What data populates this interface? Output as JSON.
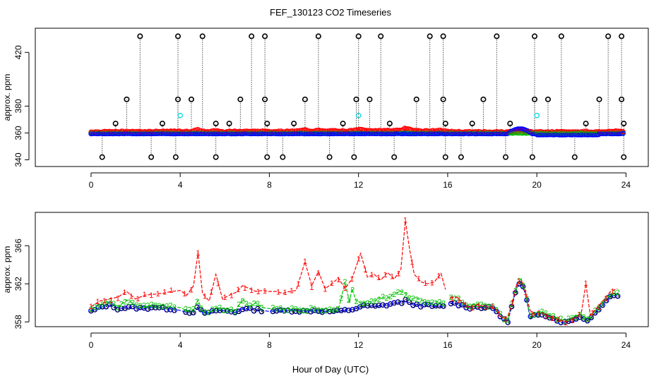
{
  "title": "FEF_130123  CO2 Timeseries",
  "xlabel": "Hour of Day (UTC)",
  "colors": {
    "series1": "#ff0000",
    "series2": "#00c000",
    "series3": "#0000ff",
    "highlight": "#00d8d8",
    "outlier": "#000000"
  },
  "chart_data": [
    {
      "type": "scatter",
      "panel": "top",
      "ylabel": "approx. ppm",
      "xlim": [
        -2.5,
        25
      ],
      "ylim": [
        335,
        438
      ],
      "xticks": [
        0,
        4,
        8,
        12,
        16,
        20,
        24
      ],
      "yticks": [
        340,
        380,
        420
      ],
      "yticklabels": [
        "340",
        "360",
        "380",
        "420"
      ],
      "ytick_values": [
        340,
        360,
        380,
        420
      ],
      "baseline_ppm": 359.5,
      "spike_high_hours": [
        2.2,
        3.9,
        5.0,
        7.2,
        7.8,
        10.2,
        12.0,
        13.0,
        15.2,
        15.8,
        18.2,
        19.9,
        21.1,
        23.2,
        23.8
      ],
      "spike_high_value": 432,
      "spike_mid_hours": [
        1.6,
        3.9,
        4.5,
        6.7,
        7.8,
        9.6,
        11.9,
        12.5,
        14.6,
        15.8,
        17.6,
        19.9,
        20.5,
        22.8,
        23.8
      ],
      "spike_mid_value": 385,
      "spike_low_hours": [
        1.1,
        3.2,
        5.6,
        6.2,
        7.9,
        9.1,
        11.3,
        13.4,
        15.9,
        17.1,
        18.8,
        22.2,
        23.9
      ],
      "spike_low_value": 367,
      "dip_hours": [
        0.5,
        2.7,
        3.8,
        5.6,
        7.9,
        8.6,
        10.7,
        11.8,
        13.6,
        15.9,
        16.6,
        18.6,
        19.8,
        21.7,
        23.9
      ],
      "dip_value": 342,
      "highlight_points": [
        [
          4.0,
          373
        ],
        [
          12.0,
          373
        ],
        [
          20.0,
          373
        ]
      ],
      "series": [
        {
          "name": "1",
          "marker": "circle",
          "color": "#ff0000"
        },
        {
          "name": "2",
          "marker": "circle",
          "color": "#00c000"
        },
        {
          "name": "3",
          "marker": "circle",
          "color": "#0000ff"
        }
      ]
    },
    {
      "type": "line",
      "panel": "bottom",
      "ylabel": "approx. ppm",
      "xlim": [
        -2.5,
        25
      ],
      "ylim": [
        357.5,
        369.5
      ],
      "xticks": [
        0,
        4,
        8,
        12,
        16,
        20,
        24
      ],
      "yticks": [
        358,
        362,
        366
      ],
      "series": [
        {
          "name": "1",
          "color": "#ff0000",
          "points": [
            [
              0.0,
              359.6
            ],
            [
              0.4,
              360.2
            ],
            [
              0.8,
              360.4
            ],
            [
              1.2,
              360.6
            ],
            [
              1.6,
              361.2
            ],
            [
              2.0,
              360.4
            ],
            [
              2.4,
              360.8
            ],
            [
              2.8,
              360.9
            ],
            [
              3.2,
              361.0
            ],
            [
              3.6,
              361.2
            ],
            [
              4.0,
              361.3
            ],
            [
              4.3,
              360.8
            ],
            [
              4.6,
              361.8
            ],
            [
              4.8,
              365.3
            ],
            [
              5.0,
              361.0
            ],
            [
              5.3,
              360.2
            ],
            [
              5.6,
              363.0
            ],
            [
              5.9,
              360.4
            ],
            [
              6.2,
              360.8
            ],
            [
              6.5,
              361.1
            ],
            [
              6.8,
              361.8
            ],
            [
              7.1,
              361.5
            ],
            [
              7.4,
              361.2
            ],
            [
              7.7,
              361.3
            ],
            [
              8.0,
              361.2
            ],
            [
              8.3,
              361.2
            ],
            [
              8.6,
              361.0
            ],
            [
              8.9,
              361.2
            ],
            [
              9.2,
              361.3
            ],
            [
              9.6,
              364.3
            ],
            [
              9.9,
              361.8
            ],
            [
              10.2,
              363.3
            ],
            [
              10.5,
              361.5
            ],
            [
              10.8,
              362.0
            ],
            [
              11.1,
              362.6
            ],
            [
              11.4,
              361.5
            ],
            [
              11.7,
              362.5
            ],
            [
              12.1,
              365.2
            ],
            [
              12.4,
              362.7
            ],
            [
              12.7,
              363.0
            ],
            [
              13.0,
              362.4
            ],
            [
              13.3,
              363.2
            ],
            [
              13.6,
              362.5
            ],
            [
              13.9,
              363.5
            ],
            [
              14.1,
              368.6
            ],
            [
              14.3,
              365.5
            ],
            [
              14.5,
              363.0
            ],
            [
              14.8,
              362.2
            ],
            [
              15.1,
              362.0
            ],
            [
              15.4,
              362.2
            ],
            [
              15.7,
              363.1
            ],
            [
              15.9,
              361.4
            ],
            [
              16.1,
              360.5
            ],
            [
              16.4,
              360.6
            ],
            [
              16.7,
              360.0
            ],
            [
              17.0,
              359.5
            ],
            [
              17.3,
              359.8
            ],
            [
              17.7,
              359.6
            ],
            [
              18.1,
              359.5
            ],
            [
              18.5,
              358.3
            ],
            [
              18.7,
              358.6
            ],
            [
              18.9,
              360.0
            ],
            [
              19.1,
              362.0
            ],
            [
              19.3,
              362.4
            ],
            [
              19.5,
              361.0
            ],
            [
              19.7,
              359.2
            ],
            [
              19.9,
              358.8
            ],
            [
              20.2,
              359.0
            ],
            [
              20.5,
              358.6
            ],
            [
              20.9,
              358.3
            ],
            [
              21.3,
              358.0
            ],
            [
              21.7,
              358.4
            ],
            [
              22.0,
              359.0
            ],
            [
              22.2,
              362.0
            ],
            [
              22.4,
              358.7
            ],
            [
              22.7,
              359.5
            ],
            [
              23.0,
              360.3
            ],
            [
              23.3,
              361.2
            ],
            [
              23.6,
              361.5
            ]
          ]
        },
        {
          "name": "2",
          "color": "#00c000",
          "points": [
            [
              0.0,
              359.3
            ],
            [
              0.4,
              359.8
            ],
            [
              0.8,
              360.2
            ],
            [
              1.2,
              359.6
            ],
            [
              1.6,
              360.3
            ],
            [
              2.0,
              359.8
            ],
            [
              2.4,
              359.6
            ],
            [
              2.8,
              359.8
            ],
            [
              3.2,
              359.7
            ],
            [
              3.6,
              359.6
            ],
            [
              4.0,
              359.5
            ],
            [
              4.3,
              359.2
            ],
            [
              4.6,
              359.3
            ],
            [
              4.8,
              360.3
            ],
            [
              5.0,
              359.1
            ],
            [
              5.3,
              359.0
            ],
            [
              5.6,
              359.5
            ],
            [
              5.9,
              359.4
            ],
            [
              6.2,
              359.3
            ],
            [
              6.5,
              359.2
            ],
            [
              6.8,
              360.4
            ],
            [
              7.1,
              359.6
            ],
            [
              7.4,
              360.0
            ],
            [
              7.7,
              359.5
            ],
            [
              8.0,
              359.4
            ],
            [
              8.3,
              359.5
            ],
            [
              8.6,
              359.3
            ],
            [
              8.9,
              359.4
            ],
            [
              9.2,
              359.4
            ],
            [
              9.6,
              359.2
            ],
            [
              9.9,
              359.5
            ],
            [
              10.2,
              359.3
            ],
            [
              10.5,
              359.4
            ],
            [
              10.8,
              359.2
            ],
            [
              11.1,
              359.3
            ],
            [
              11.4,
              362.2
            ],
            [
              11.6,
              360.0
            ],
            [
              11.7,
              361.5
            ],
            [
              11.9,
              360.2
            ],
            [
              12.1,
              360.0
            ],
            [
              12.4,
              360.1
            ],
            [
              12.7,
              360.2
            ],
            [
              13.0,
              360.6
            ],
            [
              13.3,
              360.5
            ],
            [
              13.6,
              361.0
            ],
            [
              13.9,
              361.2
            ],
            [
              14.1,
              361.0
            ],
            [
              14.3,
              360.4
            ],
            [
              14.6,
              360.5
            ],
            [
              14.9,
              360.2
            ],
            [
              15.2,
              360.0
            ],
            [
              15.5,
              360.1
            ],
            [
              15.8,
              360.0
            ],
            [
              16.1,
              360.6
            ],
            [
              16.4,
              360.6
            ],
            [
              16.7,
              359.9
            ],
            [
              17.0,
              359.7
            ],
            [
              17.3,
              359.9
            ],
            [
              17.7,
              359.8
            ],
            [
              18.1,
              359.6
            ],
            [
              18.5,
              358.4
            ],
            [
              18.7,
              358.3
            ],
            [
              18.9,
              360.1
            ],
            [
              19.1,
              361.9
            ],
            [
              19.3,
              362.5
            ],
            [
              19.5,
              361.0
            ],
            [
              19.7,
              358.5
            ],
            [
              19.9,
              358.9
            ],
            [
              20.2,
              359.1
            ],
            [
              20.5,
              358.8
            ],
            [
              20.9,
              358.4
            ],
            [
              21.3,
              358.1
            ],
            [
              21.7,
              358.6
            ],
            [
              22.0,
              358.8
            ],
            [
              22.2,
              358.4
            ],
            [
              22.4,
              358.5
            ],
            [
              22.7,
              359.4
            ],
            [
              23.0,
              360.2
            ],
            [
              23.3,
              360.9
            ],
            [
              23.6,
              361.0
            ]
          ]
        },
        {
          "name": "3",
          "color": "#0000ff",
          "points": [
            [
              0.0,
              359.1
            ],
            [
              0.4,
              359.5
            ],
            [
              0.8,
              359.8
            ],
            [
              1.2,
              359.4
            ],
            [
              1.6,
              359.5
            ],
            [
              2.0,
              359.5
            ],
            [
              2.4,
              359.4
            ],
            [
              2.8,
              359.6
            ],
            [
              3.2,
              359.4
            ],
            [
              3.6,
              359.4
            ],
            [
              4.0,
              359.2
            ],
            [
              4.3,
              359.0
            ],
            [
              4.6,
              359.1
            ],
            [
              4.8,
              359.5
            ],
            [
              5.0,
              359.0
            ],
            [
              5.3,
              358.9
            ],
            [
              5.6,
              359.2
            ],
            [
              5.9,
              359.2
            ],
            [
              6.2,
              359.1
            ],
            [
              6.5,
              359.0
            ],
            [
              6.8,
              359.4
            ],
            [
              7.1,
              359.3
            ],
            [
              7.4,
              359.3
            ],
            [
              7.7,
              359.2
            ],
            [
              8.0,
              359.1
            ],
            [
              8.3,
              359.2
            ],
            [
              8.6,
              359.1
            ],
            [
              8.9,
              359.2
            ],
            [
              9.2,
              359.2
            ],
            [
              9.6,
              359.1
            ],
            [
              9.9,
              359.2
            ],
            [
              10.2,
              359.2
            ],
            [
              10.5,
              359.1
            ],
            [
              10.8,
              359.1
            ],
            [
              11.1,
              359.1
            ],
            [
              11.4,
              359.2
            ],
            [
              11.7,
              359.3
            ],
            [
              12.1,
              359.6
            ],
            [
              12.4,
              359.7
            ],
            [
              12.7,
              359.6
            ],
            [
              13.0,
              359.7
            ],
            [
              13.3,
              359.8
            ],
            [
              13.6,
              360.0
            ],
            [
              13.9,
              360.0
            ],
            [
              14.1,
              360.3
            ],
            [
              14.3,
              359.9
            ],
            [
              14.6,
              359.8
            ],
            [
              14.9,
              359.7
            ],
            [
              15.2,
              359.7
            ],
            [
              15.5,
              359.6
            ],
            [
              15.8,
              359.6
            ],
            [
              16.1,
              360.0
            ],
            [
              16.4,
              359.9
            ],
            [
              16.7,
              359.7
            ],
            [
              17.0,
              359.5
            ],
            [
              17.3,
              359.6
            ],
            [
              17.7,
              359.5
            ],
            [
              18.1,
              359.4
            ],
            [
              18.5,
              358.2
            ],
            [
              18.7,
              358.1
            ],
            [
              18.9,
              359.8
            ],
            [
              19.1,
              361.6
            ],
            [
              19.3,
              362.2
            ],
            [
              19.5,
              360.8
            ],
            [
              19.7,
              358.4
            ],
            [
              19.9,
              358.7
            ],
            [
              20.2,
              358.9
            ],
            [
              20.5,
              358.6
            ],
            [
              20.9,
              358.2
            ],
            [
              21.3,
              357.9
            ],
            [
              21.7,
              358.4
            ],
            [
              22.0,
              358.5
            ],
            [
              22.2,
              358.2
            ],
            [
              22.4,
              358.3
            ],
            [
              22.7,
              359.2
            ],
            [
              23.0,
              360.0
            ],
            [
              23.3,
              360.7
            ],
            [
              23.6,
              360.8
            ]
          ]
        }
      ]
    }
  ]
}
